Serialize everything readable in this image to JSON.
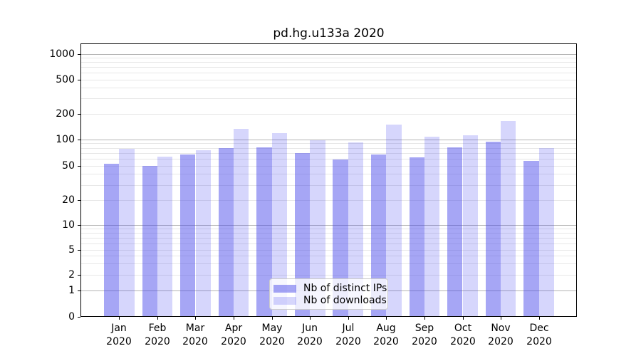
{
  "title": "pd.hg.u133a 2020",
  "colors": {
    "background": "#ffffff",
    "spine": "#000000",
    "grid_major": "#b4b4b4",
    "grid_minor": "#e7e7e7",
    "legend_border": "#cccccc",
    "legend_background": "rgba(255,255,255,0.8)",
    "text": "#000000",
    "bar_distinct_ips": "rgba(70,70,235,0.48)",
    "bar_downloads": "rgba(50,50,240,0.20)"
  },
  "chart_data": {
    "type": "bar",
    "title": "pd.hg.u133a 2020",
    "yscale": "symlog",
    "ylim": [
      0,
      1300
    ],
    "grid": "both",
    "legend_position": "lower center",
    "categories": [
      "Jan",
      "Feb",
      "Mar",
      "Apr",
      "May",
      "Jun",
      "Jul",
      "Aug",
      "Sep",
      "Oct",
      "Nov",
      "Dec"
    ],
    "year_label": "2020",
    "yticks": [
      0,
      1,
      2,
      5,
      10,
      20,
      50,
      100,
      200,
      500,
      1000
    ],
    "series": [
      {
        "name": "Nb of distinct IPs",
        "color": "rgba(70,70,235,0.48)",
        "values": [
          53,
          50,
          67,
          79,
          81,
          70,
          59,
          67,
          62,
          81,
          94,
          57
        ]
      },
      {
        "name": "Nb of downloads",
        "color": "rgba(50,50,240,0.20)",
        "values": [
          78,
          63,
          75,
          133,
          118,
          98,
          92,
          148,
          107,
          112,
          165,
          79
        ]
      }
    ]
  }
}
